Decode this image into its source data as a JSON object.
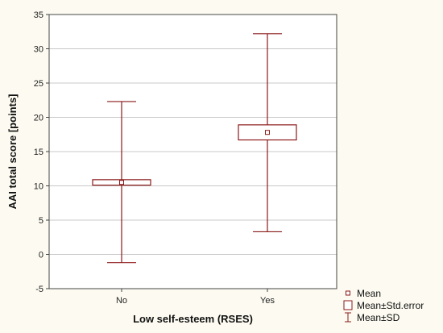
{
  "colors": {
    "background": "#fdfbf1",
    "plot_background": "#ffffff",
    "mark": "#8b1a1a",
    "grid": "#c8c8c8",
    "frame": "#444444"
  },
  "chart_data": {
    "type": "box",
    "title": "",
    "xlabel": "Low self-esteem (RSES)",
    "ylabel": "AAI total score [points]",
    "ylim": [
      -5,
      35
    ],
    "yticks": [
      -5,
      0,
      5,
      10,
      15,
      20,
      25,
      30,
      35
    ],
    "grid": true,
    "categories": [
      "No",
      "Yes"
    ],
    "groups": [
      {
        "category": "No",
        "mean": 10.5,
        "se_low": 10.1,
        "se_high": 10.9,
        "sd_low": -1.2,
        "sd_high": 22.3
      },
      {
        "category": "Yes",
        "mean": 17.8,
        "se_low": 16.7,
        "se_high": 18.9,
        "sd_low": 3.3,
        "sd_high": 32.2
      }
    ],
    "legend": {
      "placement": "bottom-right",
      "entries": [
        "Mean",
        "Mean±Std.error",
        "Mean±SD"
      ]
    }
  }
}
